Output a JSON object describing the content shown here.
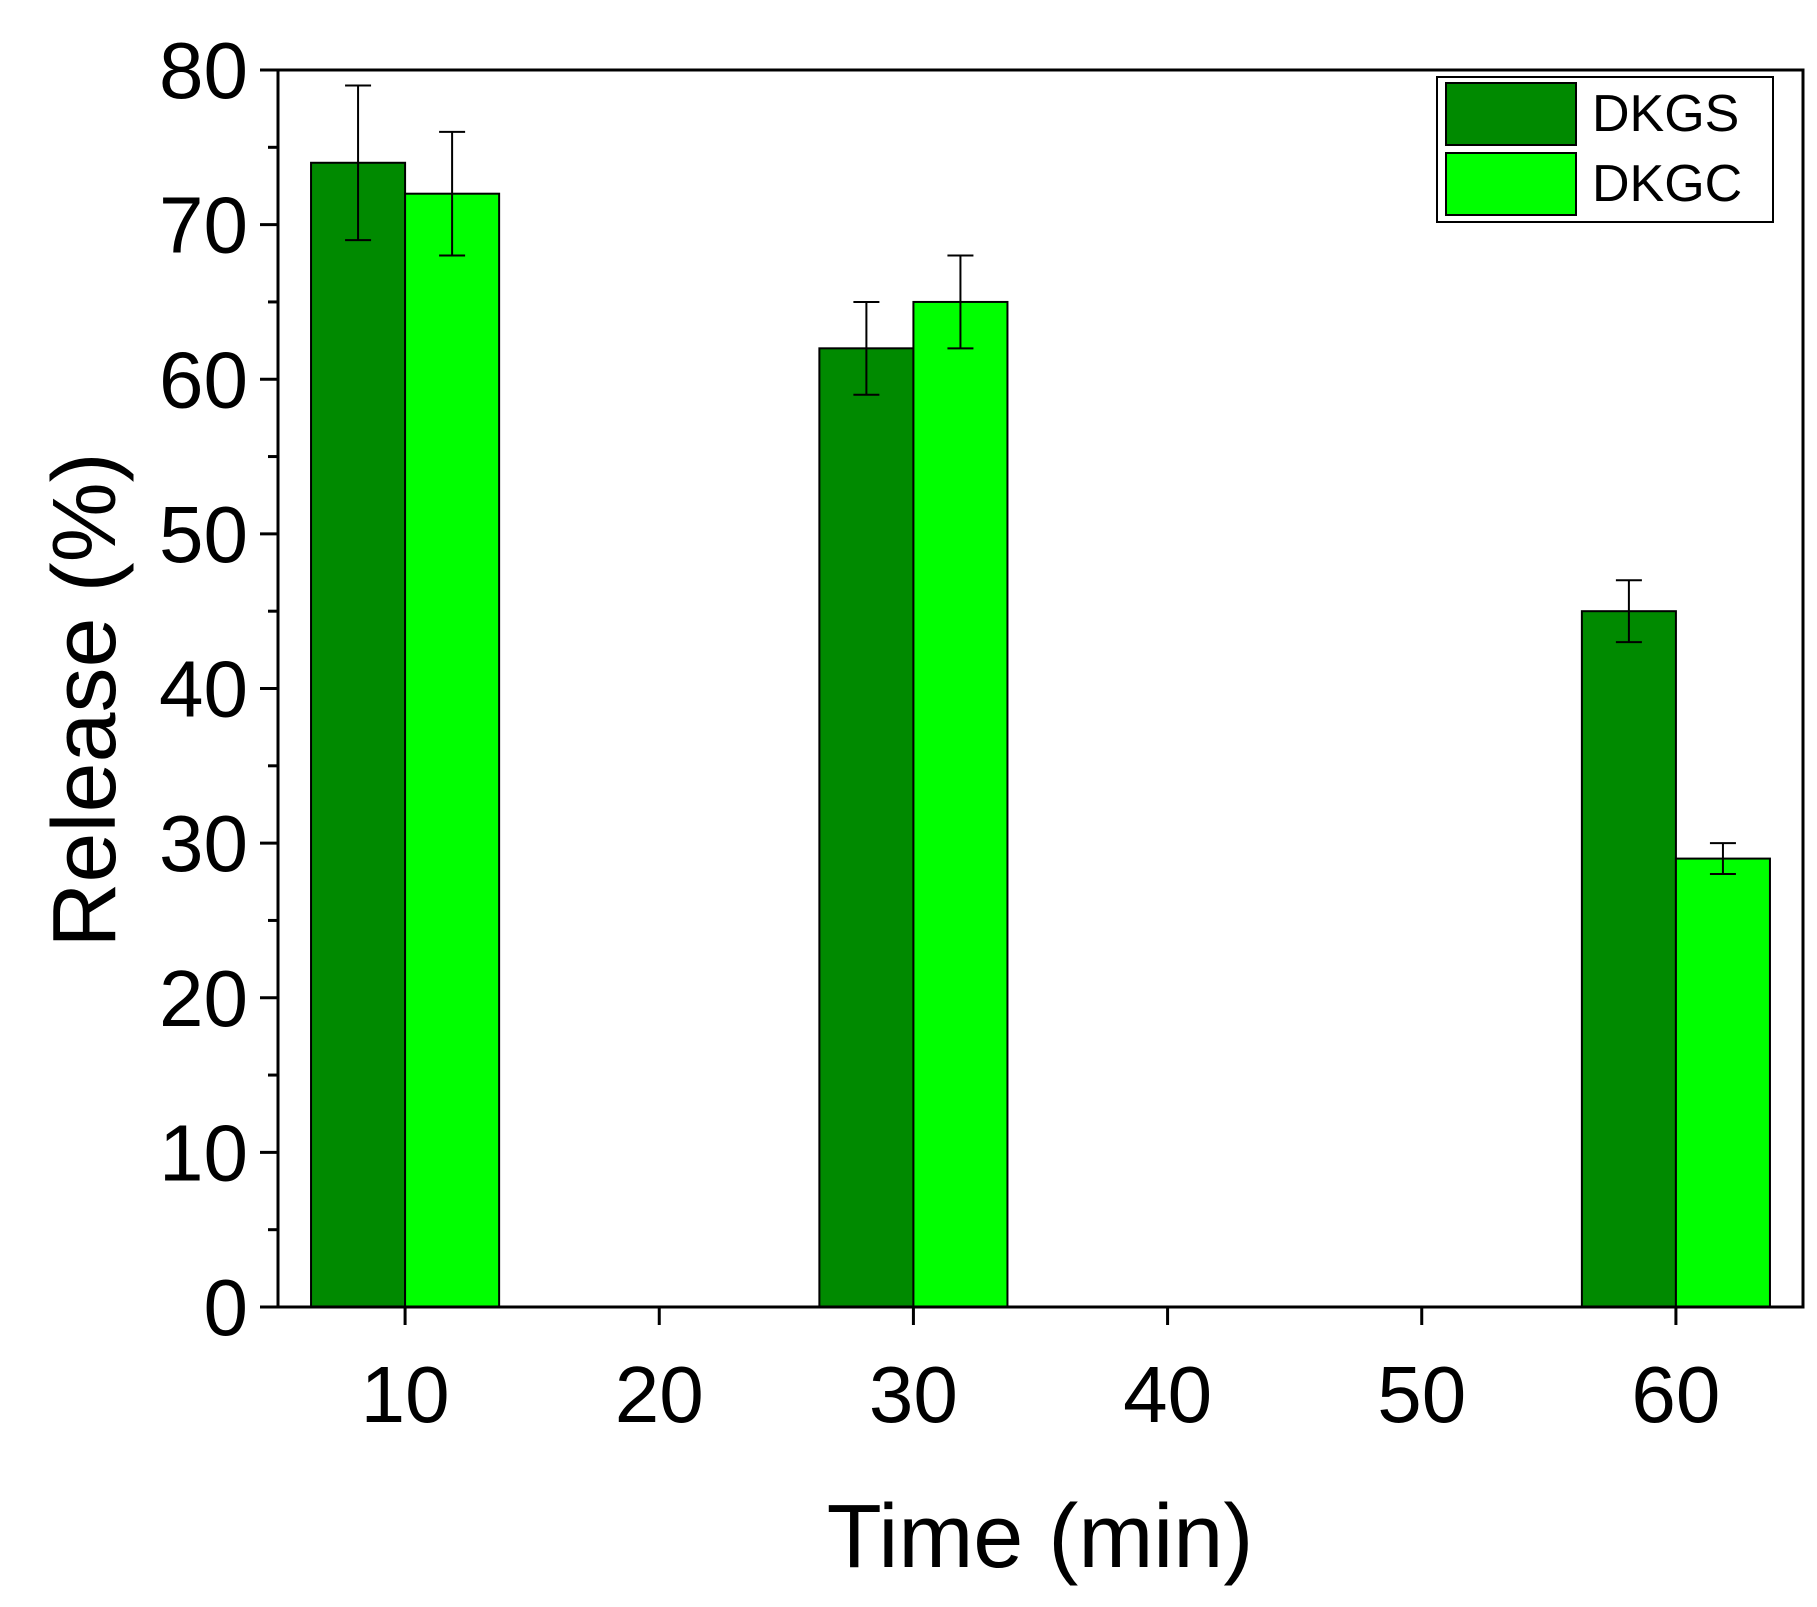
{
  "chart_data": {
    "type": "bar",
    "title": "",
    "xlabel": "Time (min)",
    "ylabel": "Release (%)",
    "xlim": [
      5,
      65
    ],
    "ylim": [
      0,
      80
    ],
    "x_ticks": [
      10,
      20,
      30,
      40,
      50,
      60
    ],
    "y_ticks": [
      0,
      10,
      20,
      30,
      40,
      50,
      60,
      70,
      80
    ],
    "bar_width": 3.7,
    "legend_position": "top-right",
    "series": [
      {
        "name": "DKGS",
        "color": "#008A00",
        "x": [
          10,
          30,
          60
        ],
        "values": [
          74,
          62,
          45
        ],
        "errors": [
          5,
          3,
          2
        ]
      },
      {
        "name": "DKGC",
        "color": "#00FF00",
        "x": [
          10,
          30,
          60
        ],
        "values": [
          72,
          65,
          29
        ],
        "errors": [
          4,
          3,
          1
        ]
      }
    ]
  }
}
